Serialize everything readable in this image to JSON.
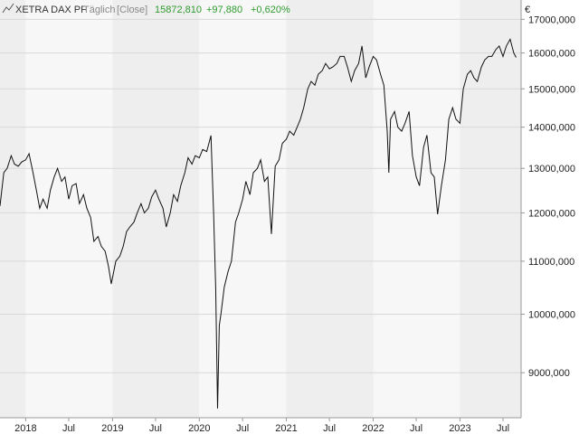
{
  "header": {
    "instrument": "XETRA DAX PF",
    "frequency": "Täglich",
    "price_type": "[Close]",
    "last_value": "15872,810",
    "change_abs": "+97,880",
    "change_pct": "+0,620%",
    "currency": "€"
  },
  "colors": {
    "line": "#111111",
    "positive": "#2e9a2e",
    "header_text": "#333333",
    "muted_text": "#888888",
    "band_light": "#f7f7f7",
    "band_dark": "#eeeeee",
    "grid": "#d8d8d8",
    "axis": "#999999"
  },
  "icons": {
    "chart": "line-chart-icon"
  },
  "chart_data": {
    "type": "line",
    "title": "XETRA DAX PF",
    "scale": "log",
    "ylim": [
      8300,
      17600
    ],
    "xlim": [
      "2017-09-15",
      "2023-09-15"
    ],
    "yticks": [
      9000,
      10000,
      11000,
      12000,
      13000,
      14000,
      15000,
      16000,
      17000
    ],
    "ytick_labels": [
      "9000,000",
      "10000,000",
      "11000,000",
      "12000,000",
      "13000,000",
      "14000,000",
      "15000,000",
      "16000,000",
      "17000,000"
    ],
    "xticks": [
      "2018-01-01",
      "2018-07-01",
      "2019-01-01",
      "2019-07-01",
      "2020-01-01",
      "2020-07-01",
      "2021-01-01",
      "2021-07-01",
      "2022-01-01",
      "2022-07-01",
      "2023-01-01",
      "2023-07-01"
    ],
    "xtick_labels": [
      "2018",
      "Jul",
      "2019",
      "Jul",
      "2020",
      "Jul",
      "2021",
      "Jul",
      "2022",
      "Jul",
      "2023",
      "Jul"
    ],
    "grid": true,
    "series": [
      {
        "x": [
          "2017-09-15",
          "2017-10-01",
          "2017-10-15",
          "2017-11-01",
          "2017-11-15",
          "2017-12-01",
          "2017-12-15",
          "2018-01-01",
          "2018-01-15",
          "2018-02-01",
          "2018-02-15",
          "2018-03-01",
          "2018-03-15",
          "2018-04-01",
          "2018-04-15",
          "2018-05-01",
          "2018-05-15",
          "2018-06-01",
          "2018-06-15",
          "2018-07-01",
          "2018-07-15",
          "2018-08-01",
          "2018-08-15",
          "2018-09-01",
          "2018-09-15",
          "2018-10-01",
          "2018-10-15",
          "2018-11-01",
          "2018-11-15",
          "2018-12-01",
          "2018-12-15",
          "2018-12-27",
          "2019-01-15",
          "2019-02-01",
          "2019-02-15",
          "2019-03-01",
          "2019-03-15",
          "2019-04-01",
          "2019-04-15",
          "2019-05-01",
          "2019-05-15",
          "2019-06-01",
          "2019-06-15",
          "2019-07-01",
          "2019-07-15",
          "2019-08-01",
          "2019-08-15",
          "2019-09-01",
          "2019-09-15",
          "2019-10-01",
          "2019-10-15",
          "2019-11-01",
          "2019-11-15",
          "2019-12-01",
          "2019-12-15",
          "2020-01-01",
          "2020-01-15",
          "2020-02-01",
          "2020-02-19",
          "2020-03-01",
          "2020-03-10",
          "2020-03-18",
          "2020-03-25",
          "2020-04-01",
          "2020-04-15",
          "2020-05-01",
          "2020-05-15",
          "2020-06-01",
          "2020-06-15",
          "2020-07-01",
          "2020-07-15",
          "2020-08-01",
          "2020-08-15",
          "2020-09-01",
          "2020-09-15",
          "2020-10-01",
          "2020-10-15",
          "2020-10-30",
          "2020-11-15",
          "2020-12-01",
          "2020-12-15",
          "2021-01-01",
          "2021-01-15",
          "2021-02-01",
          "2021-02-15",
          "2021-03-01",
          "2021-03-15",
          "2021-04-01",
          "2021-04-15",
          "2021-05-01",
          "2021-05-15",
          "2021-06-01",
          "2021-06-15",
          "2021-07-01",
          "2021-07-15",
          "2021-08-01",
          "2021-08-15",
          "2021-09-01",
          "2021-09-15",
          "2021-10-01",
          "2021-10-15",
          "2021-11-01",
          "2021-11-15",
          "2021-12-01",
          "2021-12-15",
          "2022-01-01",
          "2022-01-15",
          "2022-02-01",
          "2022-02-15",
          "2022-03-01",
          "2022-03-08",
          "2022-03-15",
          "2022-04-01",
          "2022-04-15",
          "2022-05-01",
          "2022-05-15",
          "2022-06-01",
          "2022-06-15",
          "2022-07-01",
          "2022-07-15",
          "2022-08-01",
          "2022-08-15",
          "2022-09-01",
          "2022-09-15",
          "2022-09-29",
          "2022-10-15",
          "2022-11-01",
          "2022-11-15",
          "2022-12-01",
          "2022-12-15",
          "2023-01-01",
          "2023-01-15",
          "2023-02-01",
          "2023-02-15",
          "2023-03-01",
          "2023-03-15",
          "2023-04-01",
          "2023-04-15",
          "2023-05-01",
          "2023-05-15",
          "2023-06-01",
          "2023-06-15",
          "2023-07-01",
          "2023-07-15",
          "2023-07-31",
          "2023-08-15",
          "2023-08-25"
        ],
        "y": [
          12150,
          12900,
          13000,
          13300,
          13100,
          13050,
          13150,
          13200,
          13350,
          12900,
          12500,
          12100,
          12300,
          12100,
          12500,
          12800,
          13000,
          12700,
          12800,
          12300,
          12600,
          12650,
          12200,
          12400,
          12100,
          11900,
          11400,
          11500,
          11300,
          11200,
          10900,
          10560,
          11000,
          11100,
          11300,
          11600,
          11700,
          11800,
          12000,
          12200,
          12000,
          12100,
          12350,
          12500,
          12300,
          12100,
          11700,
          12000,
          12400,
          12250,
          12600,
          12900,
          13250,
          13100,
          13300,
          13250,
          13450,
          13400,
          13790,
          12000,
          10500,
          8440,
          9800,
          10000,
          10500,
          10800,
          11000,
          11800,
          12000,
          12300,
          12700,
          12400,
          12900,
          13000,
          13200,
          12700,
          12800,
          11550,
          13050,
          13200,
          13600,
          13700,
          13900,
          13800,
          14000,
          14200,
          14500,
          15000,
          15200,
          15100,
          15400,
          15500,
          15700,
          15550,
          15600,
          15700,
          15900,
          15900,
          15600,
          15200,
          15500,
          15700,
          16200,
          15300,
          15600,
          15900,
          15800,
          15400,
          15100,
          13900,
          12900,
          14200,
          14400,
          14000,
          13900,
          14100,
          14400,
          13300,
          12800,
          12600,
          13500,
          13800,
          12900,
          12800,
          11970,
          12600,
          13200,
          14200,
          14500,
          14200,
          14100,
          15000,
          15400,
          15500,
          15300,
          15200,
          15600,
          15800,
          15900,
          15900,
          16100,
          16200,
          15900,
          16200,
          16400,
          16000,
          15872
        ]
      }
    ]
  }
}
